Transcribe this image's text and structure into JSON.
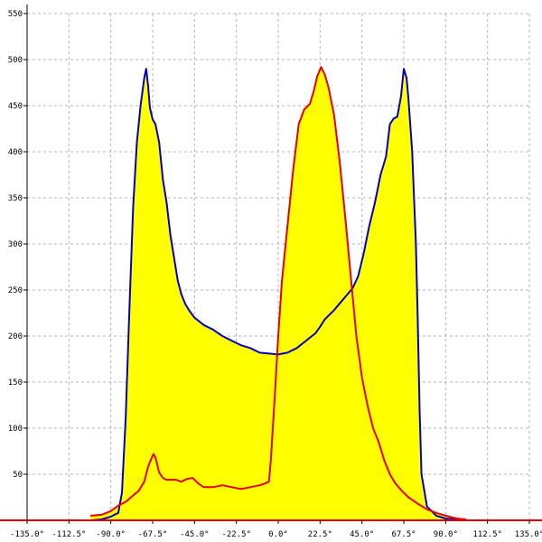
{
  "chart_data": {
    "type": "area",
    "title": "",
    "xlabel": "",
    "ylabel": "",
    "xlim": [
      -135,
      135
    ],
    "ylim": [
      0,
      550
    ],
    "grid": true,
    "x_ticks": [
      {
        "value": -135,
        "label": "-135.0°"
      },
      {
        "value": -112.5,
        "label": "-112.5°"
      },
      {
        "value": -90,
        "label": "-90.0°"
      },
      {
        "value": -67.5,
        "label": "-67.5°"
      },
      {
        "value": -45,
        "label": "-45.0°"
      },
      {
        "value": -22.5,
        "label": "-22.5°"
      },
      {
        "value": 0,
        "label": "0.0°"
      },
      {
        "value": 22.5,
        "label": "22.5°"
      },
      {
        "value": 45,
        "label": "45.0°"
      },
      {
        "value": 67.5,
        "label": "67.5°"
      },
      {
        "value": 90,
        "label": "90.0°"
      },
      {
        "value": 112.5,
        "label": "112.5°"
      },
      {
        "value": 135,
        "label": "135.0°"
      }
    ],
    "y_ticks": [
      {
        "value": 50,
        "label": "50"
      },
      {
        "value": 100,
        "label": "100"
      },
      {
        "value": 150,
        "label": "150"
      },
      {
        "value": 200,
        "label": "200"
      },
      {
        "value": 250,
        "label": "250"
      },
      {
        "value": 300,
        "label": "300"
      },
      {
        "value": 350,
        "label": "350"
      },
      {
        "value": 400,
        "label": "400"
      },
      {
        "value": 450,
        "label": "450"
      },
      {
        "value": 500,
        "label": "500"
      },
      {
        "value": 550,
        "label": "550"
      }
    ],
    "fill_color": "#ffff00",
    "series": [
      {
        "color": "#0000c8",
        "points": [
          [
            -101,
            0
          ],
          [
            -95,
            1
          ],
          [
            -90,
            4
          ],
          [
            -86,
            8
          ],
          [
            -84,
            30
          ],
          [
            -82,
            110
          ],
          [
            -80,
            230
          ],
          [
            -78,
            340
          ],
          [
            -76,
            410
          ],
          [
            -74,
            450
          ],
          [
            -72,
            480
          ],
          [
            -71,
            490
          ],
          [
            -70,
            472
          ],
          [
            -69,
            448
          ],
          [
            -67.5,
            435
          ],
          [
            -66,
            430
          ],
          [
            -64,
            410
          ],
          [
            -62,
            370
          ],
          [
            -60,
            345
          ],
          [
            -58,
            310
          ],
          [
            -56,
            285
          ],
          [
            -54,
            260
          ],
          [
            -52,
            245
          ],
          [
            -50,
            235
          ],
          [
            -48,
            228
          ],
          [
            -45,
            220
          ],
          [
            -40,
            212
          ],
          [
            -35,
            207
          ],
          [
            -30,
            200
          ],
          [
            -25,
            195
          ],
          [
            -20,
            190
          ],
          [
            -15,
            187
          ],
          [
            -10,
            182
          ],
          [
            -5,
            181
          ],
          [
            0,
            180
          ],
          [
            5,
            182
          ],
          [
            10,
            187
          ],
          [
            15,
            195
          ],
          [
            20,
            203
          ],
          [
            22.5,
            210
          ],
          [
            25,
            218
          ],
          [
            30,
            228
          ],
          [
            35,
            240
          ],
          [
            40,
            252
          ],
          [
            43,
            265
          ],
          [
            46,
            290
          ],
          [
            49,
            320
          ],
          [
            52,
            345
          ],
          [
            55,
            375
          ],
          [
            58,
            395
          ],
          [
            60,
            430
          ],
          [
            62,
            436
          ],
          [
            64,
            438
          ],
          [
            66,
            460
          ],
          [
            67.5,
            490
          ],
          [
            69,
            480
          ],
          [
            70,
            458
          ],
          [
            72,
            400
          ],
          [
            74,
            300
          ],
          [
            75,
            220
          ],
          [
            76,
            120
          ],
          [
            77,
            50
          ],
          [
            80,
            15
          ],
          [
            85,
            5
          ],
          [
            90,
            2
          ],
          [
            96,
            1
          ],
          [
            101,
            0
          ]
        ]
      },
      {
        "color": "#e60000",
        "points": [
          [
            -101,
            5
          ],
          [
            -95,
            6
          ],
          [
            -90,
            10
          ],
          [
            -86,
            16
          ],
          [
            -82,
            20
          ],
          [
            -78,
            27
          ],
          [
            -75,
            32
          ],
          [
            -72,
            42
          ],
          [
            -70,
            58
          ],
          [
            -68,
            68
          ],
          [
            -67,
            72
          ],
          [
            -66,
            68
          ],
          [
            -64,
            52
          ],
          [
            -62,
            46
          ],
          [
            -60,
            44
          ],
          [
            -55,
            44
          ],
          [
            -52,
            42
          ],
          [
            -49,
            45
          ],
          [
            -46,
            46
          ],
          [
            -43,
            40
          ],
          [
            -40,
            36
          ],
          [
            -35,
            36
          ],
          [
            -30,
            38
          ],
          [
            -25,
            36
          ],
          [
            -20,
            34
          ],
          [
            -15,
            36
          ],
          [
            -10,
            38
          ],
          [
            -7,
            40
          ],
          [
            -5,
            42
          ],
          [
            -4,
            65
          ],
          [
            -2,
            130
          ],
          [
            0,
            200
          ],
          [
            2,
            260
          ],
          [
            5,
            320
          ],
          [
            8,
            380
          ],
          [
            11,
            430
          ],
          [
            14,
            446
          ],
          [
            17,
            452
          ],
          [
            19,
            465
          ],
          [
            21,
            482
          ],
          [
            23,
            492
          ],
          [
            25,
            484
          ],
          [
            27,
            470
          ],
          [
            30,
            440
          ],
          [
            33,
            390
          ],
          [
            36,
            330
          ],
          [
            39,
            265
          ],
          [
            42,
            200
          ],
          [
            45,
            155
          ],
          [
            48,
            125
          ],
          [
            51,
            100
          ],
          [
            54,
            85
          ],
          [
            57,
            65
          ],
          [
            60,
            50
          ],
          [
            63,
            40
          ],
          [
            66,
            33
          ],
          [
            70,
            25
          ],
          [
            75,
            18
          ],
          [
            80,
            12
          ],
          [
            85,
            8
          ],
          [
            90,
            5
          ],
          [
            96,
            2
          ],
          [
            101,
            1
          ]
        ]
      }
    ]
  }
}
